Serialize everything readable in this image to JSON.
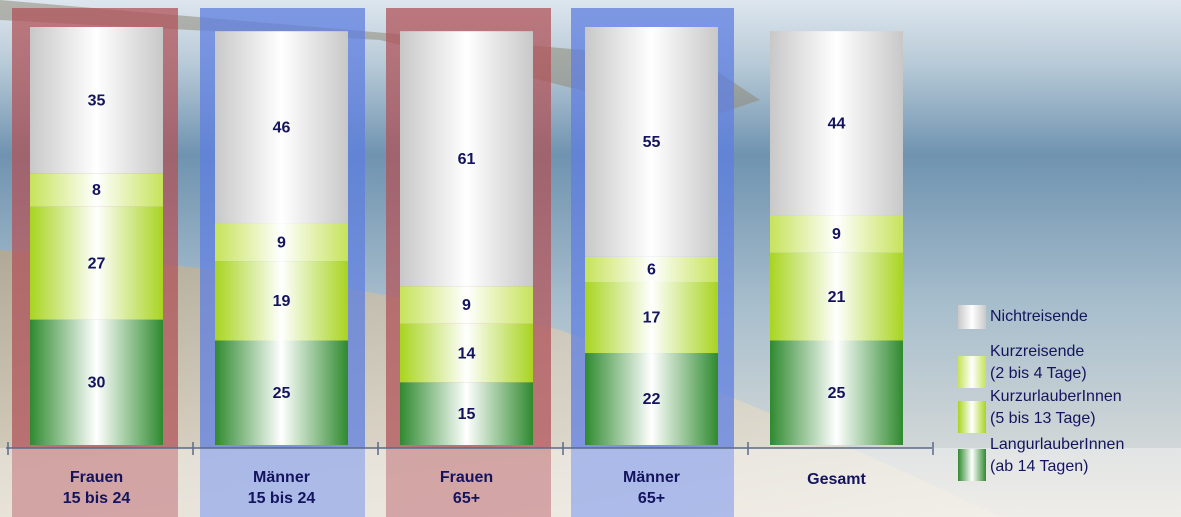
{
  "chart_data": {
    "type": "stacked-bar",
    "categories": [
      [
        "Frauen",
        "15 bis 24"
      ],
      [
        "Männer",
        "15 bis 24"
      ],
      [
        "Frauen",
        "65+"
      ],
      [
        "Männer",
        "65+"
      ],
      [
        "Gesamt"
      ]
    ],
    "series": [
      {
        "name": [
          "LangurlauberInnen",
          "(ab 14 Tagen)"
        ],
        "color": "#2f8a2f",
        "values": [
          30,
          25,
          15,
          22,
          25
        ]
      },
      {
        "name": [
          "KurzurlauberInnen",
          "(5 bis 13 Tage)"
        ],
        "color": "#a8d420",
        "values": [
          27,
          19,
          14,
          17,
          21
        ]
      },
      {
        "name": [
          "Kurzreisende",
          "(2 bis 4 Tage)"
        ],
        "color": "#c6e35a",
        "values": [
          8,
          9,
          9,
          6,
          9
        ]
      },
      {
        "name": [
          "Nichtreisende"
        ],
        "color": "#c8c8c8",
        "values": [
          35,
          46,
          61,
          55,
          44
        ]
      }
    ],
    "ylim": [
      0,
      100
    ]
  }
}
